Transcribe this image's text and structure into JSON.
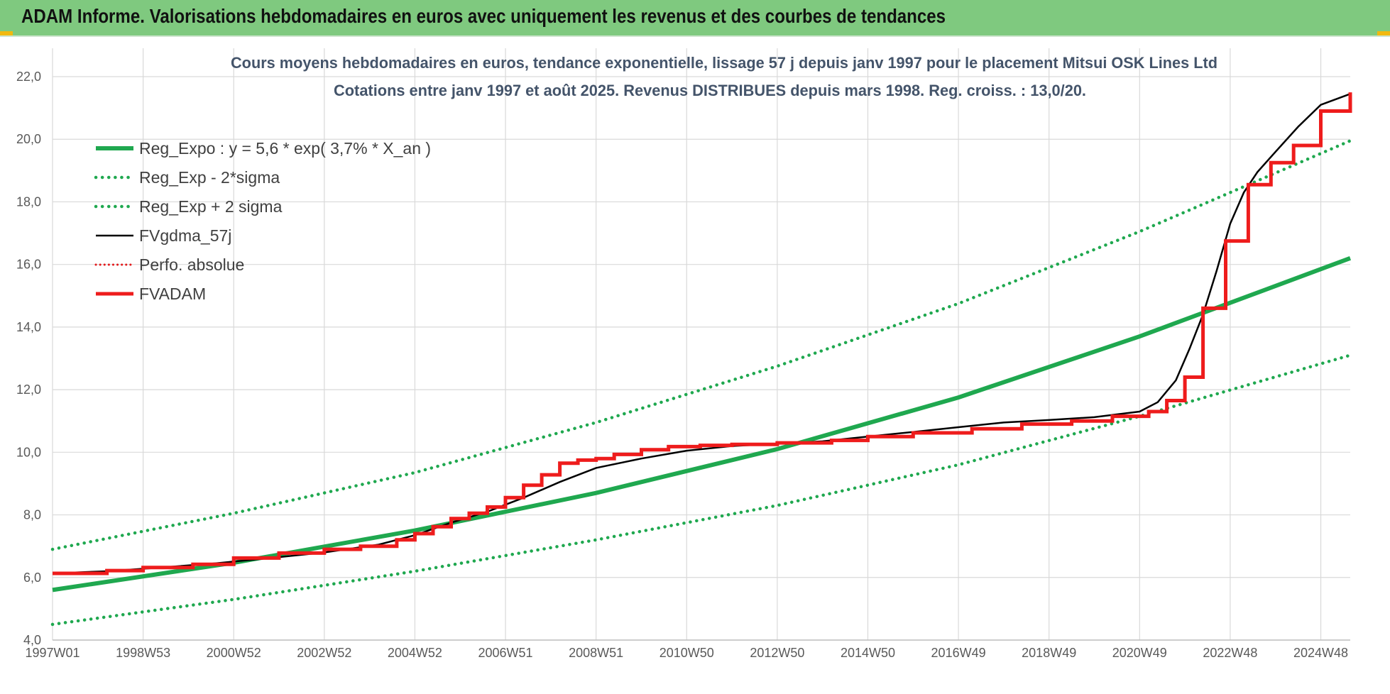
{
  "banner": {
    "title": "ADAM Informe. Valorisations hebdomadaires en euros avec uniquement les revenus et des courbes de tendances"
  },
  "colors": {
    "banner_bg": "#7fc97f",
    "trend": "#1fa84f",
    "smooth": "#000000",
    "adam": "#ee1c1c",
    "perf": "#e31a1c"
  },
  "chart_data": {
    "type": "line",
    "title": "Cours moyens hebdomadaires en euros, tendance exponentielle, lissage 57 j depuis janv 1997 pour le placement Mitsui OSK Lines Ltd",
    "subtitle": "Cotations entre janv 1997 et août 2025. Revenus DISTRIBUES depuis mars 1998. Reg. croiss. : 13,0/20.",
    "xlabel": "",
    "ylabel": "",
    "ylim": [
      4,
      22
    ],
    "y_ticks": [
      "4,0",
      "6,0",
      "8,0",
      "10,0",
      "12,0",
      "14,0",
      "16,0",
      "18,0",
      "20,0",
      "22,0"
    ],
    "x_ticks": [
      {
        "label": "1997W01",
        "year": 1997.0
      },
      {
        "label": "1998W53",
        "year": 1999.0
      },
      {
        "label": "2000W52",
        "year": 2001.0
      },
      {
        "label": "2002W52",
        "year": 2003.0
      },
      {
        "label": "2004W52",
        "year": 2005.0
      },
      {
        "label": "2006W51",
        "year": 2007.0
      },
      {
        "label": "2008W51",
        "year": 2009.0
      },
      {
        "label": "2010W50",
        "year": 2011.0
      },
      {
        "label": "2012W50",
        "year": 2013.0
      },
      {
        "label": "2014W50",
        "year": 2015.0
      },
      {
        "label": "2016W49",
        "year": 2017.0
      },
      {
        "label": "2018W49",
        "year": 2019.0
      },
      {
        "label": "2020W49",
        "year": 2021.0
      },
      {
        "label": "2022W48",
        "year": 2023.0
      },
      {
        "label": "2024W48",
        "year": 2025.0
      }
    ],
    "xlim": [
      1997.0,
      2025.65
    ],
    "grid": true,
    "legend_position": "top-left",
    "series": [
      {
        "name": "Reg_Expo : y = 5,6 * exp( 3,7% *  X_an )",
        "style": "trend",
        "x": [
          1997.0,
          2001.0,
          2005.0,
          2009.0,
          2013.0,
          2017.0,
          2021.0,
          2025.65
        ],
        "y": [
          5.6,
          6.47,
          7.5,
          8.7,
          10.1,
          11.75,
          13.7,
          16.2
        ]
      },
      {
        "name": "Reg_Exp - 2*sigma",
        "style": "trend-dotted",
        "x": [
          1997.0,
          2001.0,
          2005.0,
          2009.0,
          2013.0,
          2017.0,
          2021.0,
          2025.65
        ],
        "y": [
          4.5,
          5.3,
          6.2,
          7.2,
          8.3,
          9.6,
          11.15,
          13.1
        ]
      },
      {
        "name": "Reg_Exp + 2 sigma",
        "style": "trend-dotted",
        "x": [
          1997.0,
          2001.0,
          2005.0,
          2009.0,
          2013.0,
          2017.0,
          2021.0,
          2025.65
        ],
        "y": [
          6.9,
          8.05,
          9.35,
          10.95,
          12.75,
          14.75,
          17.05,
          19.95
        ]
      },
      {
        "name": "FVgdma_57j",
        "style": "smooth",
        "x": [
          1997.0,
          1998.2,
          1999.4,
          2000.6,
          2001.8,
          2003.0,
          2004.2,
          2005.0,
          2005.8,
          2006.6,
          2007.4,
          2008.2,
          2009.0,
          2010.0,
          2011.0,
          2012.0,
          2013.0,
          2014.0,
          2015.0,
          2016.0,
          2017.0,
          2018.0,
          2019.0,
          2020.0,
          2021.0,
          2021.4,
          2021.8,
          2022.1,
          2022.4,
          2022.7,
          2023.0,
          2023.3,
          2023.6,
          2024.0,
          2024.5,
          2025.0,
          2025.65
        ],
        "y": [
          6.13,
          6.2,
          6.32,
          6.45,
          6.62,
          6.8,
          7.05,
          7.35,
          7.75,
          8.1,
          8.55,
          9.05,
          9.5,
          9.8,
          10.05,
          10.2,
          10.27,
          10.35,
          10.5,
          10.65,
          10.8,
          10.95,
          11.03,
          11.12,
          11.3,
          11.6,
          12.3,
          13.3,
          14.4,
          15.8,
          17.3,
          18.3,
          18.95,
          19.6,
          20.4,
          21.1,
          21.45
        ]
      },
      {
        "name": "Perfo. absolue",
        "style": "perf-dotted",
        "x": [],
        "y": []
      },
      {
        "name": "FVADAM",
        "style": "adam-step",
        "x": [
          1997.0,
          1998.2,
          1999.0,
          2000.1,
          2001.0,
          2002.0,
          2003.0,
          2003.8,
          2004.6,
          2005.0,
          2005.4,
          2005.8,
          2006.2,
          2006.6,
          2007.0,
          2007.4,
          2007.8,
          2008.2,
          2008.6,
          2009.0,
          2009.4,
          2010.0,
          2010.6,
          2011.3,
          2012.0,
          2013.0,
          2014.2,
          2015.0,
          2016.0,
          2017.3,
          2018.4,
          2019.5,
          2020.4,
          2021.2,
          2021.6,
          2022.0,
          2022.4,
          2022.9,
          2023.4,
          2023.9,
          2024.4,
          2025.0,
          2025.65
        ],
        "y": [
          6.13,
          6.22,
          6.32,
          6.42,
          6.62,
          6.78,
          6.9,
          7.0,
          7.2,
          7.4,
          7.62,
          7.88,
          8.05,
          8.25,
          8.55,
          8.95,
          9.28,
          9.65,
          9.75,
          9.8,
          9.93,
          10.08,
          10.18,
          10.22,
          10.25,
          10.3,
          10.38,
          10.5,
          10.62,
          10.75,
          10.9,
          11.0,
          11.15,
          11.3,
          11.65,
          12.4,
          14.6,
          16.75,
          18.55,
          19.25,
          19.8,
          20.9,
          21.5
        ]
      }
    ]
  }
}
